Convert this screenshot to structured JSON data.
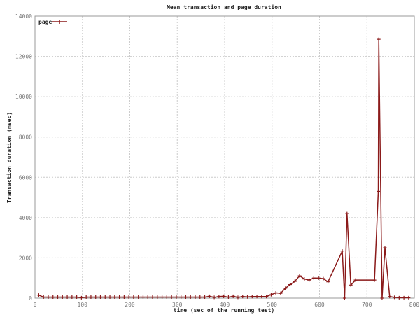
{
  "chart_data": {
    "type": "line",
    "title": "Mean transaction and page duration",
    "xlabel": "time (sec of the running test)",
    "ylabel": "Transaction duration (msec)",
    "xlim": [
      0,
      800
    ],
    "ylim": [
      0,
      14000
    ],
    "xticks": [
      0,
      100,
      200,
      300,
      400,
      500,
      600,
      700,
      800
    ],
    "yticks": [
      0,
      2000,
      4000,
      6000,
      8000,
      10000,
      12000,
      14000
    ],
    "grid": true,
    "legend_position": "top-left",
    "series_color": "#8b1a1a",
    "series": [
      {
        "name": "page",
        "x": [
          8,
          18,
          28,
          38,
          48,
          58,
          68,
          78,
          88,
          98,
          108,
          118,
          128,
          138,
          148,
          158,
          168,
          178,
          188,
          198,
          208,
          218,
          228,
          238,
          248,
          258,
          268,
          278,
          288,
          298,
          308,
          318,
          328,
          338,
          348,
          358,
          368,
          378,
          388,
          398,
          408,
          418,
          428,
          438,
          448,
          458,
          468,
          478,
          488,
          498,
          508,
          518,
          528,
          538,
          548,
          558,
          568,
          578,
          588,
          598,
          608,
          618,
          648,
          653,
          658,
          666,
          676,
          716,
          724,
          725,
          732,
          738,
          748,
          758,
          768,
          778,
          788
        ],
        "y": [
          150,
          50,
          50,
          50,
          50,
          50,
          50,
          50,
          50,
          20,
          50,
          50,
          50,
          50,
          50,
          50,
          50,
          50,
          50,
          50,
          50,
          50,
          50,
          50,
          50,
          50,
          50,
          50,
          50,
          50,
          50,
          50,
          50,
          50,
          50,
          50,
          90,
          40,
          80,
          90,
          50,
          90,
          40,
          80,
          60,
          80,
          80,
          80,
          80,
          170,
          260,
          240,
          490,
          675,
          835,
          1110,
          950,
          900,
          1000,
          995,
          970,
          810,
          2340,
          0,
          4200,
          650,
          900,
          900,
          5300,
          12850,
          0,
          2500,
          80,
          40,
          20,
          20,
          20
        ]
      }
    ]
  }
}
